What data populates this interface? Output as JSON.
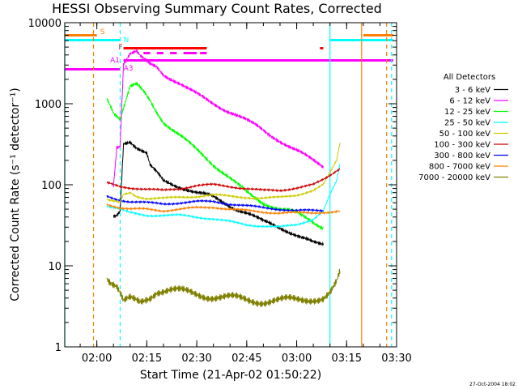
{
  "chart_data": {
    "type": "line",
    "title": "HESSI Observing Summary Count Rates, Corrected",
    "xlabel": "Start Time (21-Apr-02 01:50:22)",
    "ylabel": "Corrected Count Rate (s⁻¹ detector⁻¹)",
    "y_scale": "log",
    "ylim": [
      1,
      10000
    ],
    "xlim": [
      "01:50:22",
      "03:30:00"
    ],
    "x_ticks": [
      "02:00",
      "02:15",
      "02:30",
      "02:45",
      "03:00",
      "03:15",
      "03:30"
    ],
    "y_ticks": [
      "1",
      "10",
      "100",
      "1000",
      "10000"
    ],
    "legend_title": "All Detectors",
    "legend_position": "right",
    "timestamp": "27-Oct-2004 18:02",
    "series": [
      {
        "name": "3 - 6 keV",
        "color": "#000000",
        "points": [
          [
            "02:05",
            40
          ],
          [
            "02:06",
            42
          ],
          [
            "02:07",
            48
          ],
          [
            "02:08",
            330
          ],
          [
            "02:10",
            350
          ],
          [
            "02:12",
            290
          ],
          [
            "02:14",
            255
          ],
          [
            "02:15",
            240
          ],
          [
            "02:16",
            170
          ],
          [
            "02:18",
            140
          ],
          [
            "02:19",
            125
          ],
          [
            "02:20",
            110
          ],
          [
            "02:25",
            95
          ],
          [
            "02:30",
            80
          ],
          [
            "02:35",
            70
          ],
          [
            "02:40",
            55
          ],
          [
            "02:45",
            45
          ],
          [
            "02:50",
            35
          ],
          [
            "02:55",
            30
          ],
          [
            "03:00",
            24
          ],
          [
            "03:05",
            19
          ],
          [
            "03:08",
            18
          ]
        ]
      },
      {
        "name": "6 - 12 keV",
        "color": "#ff00ff",
        "points": [
          [
            "02:05",
            100
          ],
          [
            "02:06",
            300
          ],
          [
            "02:07",
            310
          ],
          [
            "02:08",
            3200
          ],
          [
            "02:10",
            4200
          ],
          [
            "02:12",
            4400
          ],
          [
            "02:13",
            3800
          ],
          [
            "02:14",
            3500
          ],
          [
            "02:16",
            3000
          ],
          [
            "02:18",
            2800
          ],
          [
            "02:20",
            2300
          ],
          [
            "02:25",
            1800
          ],
          [
            "02:30",
            1300
          ],
          [
            "02:35",
            1000
          ],
          [
            "02:40",
            800
          ],
          [
            "02:45",
            620
          ],
          [
            "02:50",
            470
          ],
          [
            "02:55",
            350
          ],
          [
            "03:00",
            260
          ],
          [
            "03:05",
            200
          ],
          [
            "03:08",
            170
          ]
        ]
      },
      {
        "name": "12 - 25 keV",
        "color": "#00ff00",
        "points": [
          [
            "02:03",
            1200
          ],
          [
            "02:04",
            1000
          ],
          [
            "02:05",
            800
          ],
          [
            "02:07",
            650
          ],
          [
            "02:10",
            1600
          ],
          [
            "02:12",
            1700
          ],
          [
            "02:14",
            1400
          ],
          [
            "02:16",
            1100
          ],
          [
            "02:18",
            800
          ],
          [
            "02:20",
            600
          ],
          [
            "02:25",
            400
          ],
          [
            "02:30",
            270
          ],
          [
            "02:35",
            180
          ],
          [
            "02:40",
            120
          ],
          [
            "02:45",
            80
          ],
          [
            "02:50",
            60
          ],
          [
            "02:55",
            50
          ],
          [
            "03:00",
            45
          ],
          [
            "03:05",
            35
          ],
          [
            "03:08",
            30
          ]
        ]
      },
      {
        "name": "25 - 50 keV",
        "color": "#00ffff",
        "points": [
          [
            "02:03",
            55
          ],
          [
            "02:05",
            52
          ],
          [
            "02:07",
            50
          ],
          [
            "02:08",
            48
          ],
          [
            "02:10",
            45
          ],
          [
            "02:15",
            42
          ],
          [
            "02:20",
            42
          ],
          [
            "02:25",
            42
          ],
          [
            "02:30",
            40
          ],
          [
            "02:35",
            38
          ],
          [
            "02:40",
            35
          ],
          [
            "02:45",
            32
          ],
          [
            "02:50",
            31
          ],
          [
            "02:55",
            30
          ],
          [
            "03:00",
            32
          ],
          [
            "03:05",
            38
          ],
          [
            "03:08",
            48
          ],
          [
            "03:10",
            75
          ],
          [
            "03:12",
            110
          ],
          [
            "03:13",
            180
          ]
        ]
      },
      {
        "name": "50 - 100 keV",
        "color": "#cccc00",
        "points": [
          [
            "02:03",
            65
          ],
          [
            "02:05",
            62
          ],
          [
            "02:07",
            60
          ],
          [
            "02:08",
            75
          ],
          [
            "02:10",
            80
          ],
          [
            "02:12",
            72
          ],
          [
            "02:15",
            68
          ],
          [
            "02:20",
            68
          ],
          [
            "02:25",
            70
          ],
          [
            "02:30",
            72
          ],
          [
            "02:35",
            75
          ],
          [
            "02:40",
            72
          ],
          [
            "02:45",
            70
          ],
          [
            "02:50",
            68
          ],
          [
            "02:55",
            70
          ],
          [
            "03:00",
            75
          ],
          [
            "03:05",
            85
          ],
          [
            "03:08",
            100
          ],
          [
            "03:10",
            140
          ],
          [
            "03:12",
            200
          ],
          [
            "03:13",
            330
          ]
        ]
      },
      {
        "name": "100 - 300 keV",
        "color": "#cc0000",
        "points": [
          [
            "02:03",
            105
          ],
          [
            "02:05",
            100
          ],
          [
            "02:07",
            95
          ],
          [
            "02:10",
            92
          ],
          [
            "02:15",
            88
          ],
          [
            "02:20",
            85
          ],
          [
            "02:25",
            90
          ],
          [
            "02:30",
            98
          ],
          [
            "02:35",
            100
          ],
          [
            "02:40",
            95
          ],
          [
            "02:45",
            90
          ],
          [
            "02:50",
            85
          ],
          [
            "02:55",
            85
          ],
          [
            "03:00",
            92
          ],
          [
            "03:05",
            100
          ],
          [
            "03:08",
            115
          ],
          [
            "03:10",
            130
          ],
          [
            "03:12",
            150
          ],
          [
            "03:13",
            160
          ]
        ]
      },
      {
        "name": "300 - 800 keV",
        "color": "#0000ff",
        "points": [
          [
            "02:03",
            72
          ],
          [
            "02:05",
            68
          ],
          [
            "02:07",
            65
          ],
          [
            "02:10",
            62
          ],
          [
            "02:15",
            60
          ],
          [
            "02:20",
            58
          ],
          [
            "02:25",
            60
          ],
          [
            "02:30",
            62
          ],
          [
            "02:35",
            62
          ],
          [
            "02:40",
            58
          ],
          [
            "02:45",
            55
          ],
          [
            "02:50",
            52
          ],
          [
            "02:55",
            50
          ],
          [
            "03:00",
            48
          ],
          [
            "03:05",
            48
          ],
          [
            "03:08",
            48
          ]
        ]
      },
      {
        "name": "800 - 7000 keV",
        "color": "#ff8000",
        "points": [
          [
            "02:03",
            58
          ],
          [
            "02:05",
            55
          ],
          [
            "02:07",
            52
          ],
          [
            "02:10",
            50
          ],
          [
            "02:15",
            50
          ],
          [
            "02:20",
            48
          ],
          [
            "02:25",
            50
          ],
          [
            "02:30",
            52
          ],
          [
            "02:35",
            53
          ],
          [
            "02:40",
            50
          ],
          [
            "02:45",
            48
          ],
          [
            "02:50",
            46
          ],
          [
            "02:55",
            45
          ],
          [
            "03:00",
            45
          ],
          [
            "03:05",
            45
          ],
          [
            "03:08",
            46
          ],
          [
            "03:10",
            46
          ],
          [
            "03:13",
            47
          ]
        ]
      },
      {
        "name": "7000 - 20000 keV",
        "color": "#808000",
        "points": [
          [
            "02:03",
            7.5
          ],
          [
            "02:04",
            6.5
          ],
          [
            "02:05",
            6
          ],
          [
            "02:06",
            5.5
          ],
          [
            "02:07",
            4.5
          ],
          [
            "02:08",
            3.5
          ],
          [
            "02:10",
            3.8
          ],
          [
            "02:13",
            3.5
          ],
          [
            "02:16",
            4.2
          ],
          [
            "02:18",
            5
          ],
          [
            "02:22",
            5
          ],
          [
            "02:25",
            4.8
          ],
          [
            "02:30",
            4.5
          ],
          [
            "02:35",
            4.2
          ],
          [
            "02:40",
            4
          ],
          [
            "02:45",
            3.8
          ],
          [
            "02:50",
            3.7
          ],
          [
            "02:55",
            3.7
          ],
          [
            "03:00",
            3.8
          ],
          [
            "03:05",
            4
          ],
          [
            "03:08",
            4
          ],
          [
            "03:10",
            4.5
          ],
          [
            "03:12",
            6
          ],
          [
            "03:13",
            8
          ]
        ]
      }
    ],
    "flag_labels": [
      "S",
      "N",
      "F",
      "A1",
      "A3"
    ]
  }
}
